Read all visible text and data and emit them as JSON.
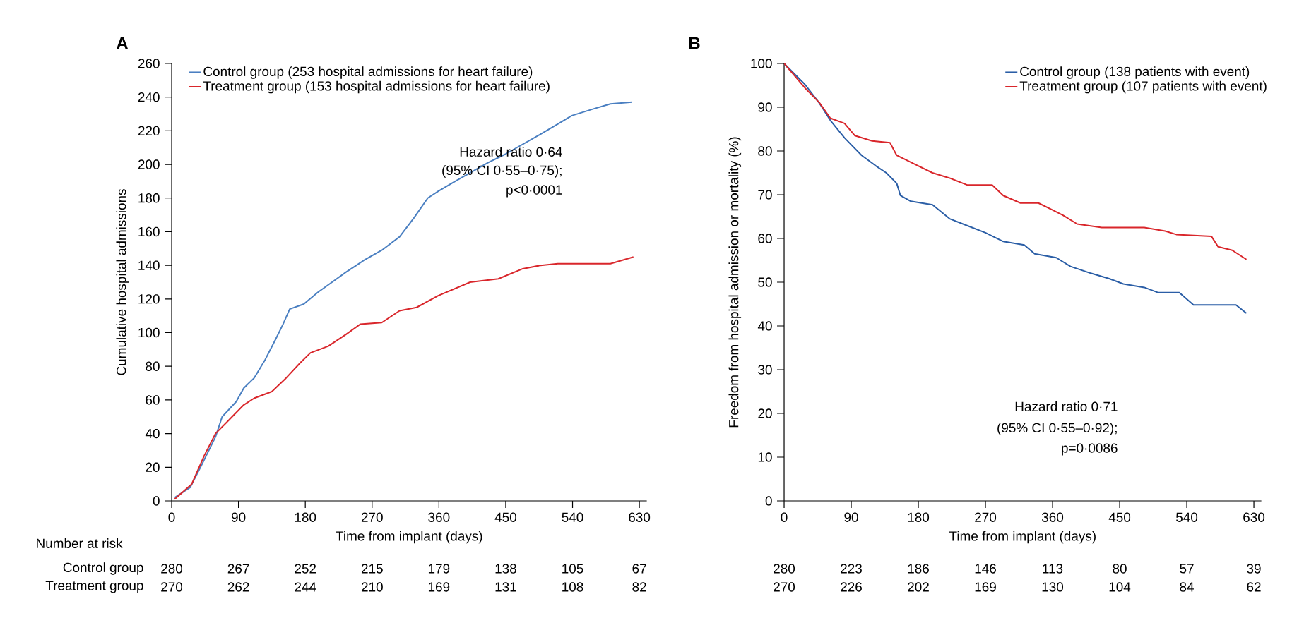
{
  "chart_data": [
    {
      "type": "line",
      "title": "A",
      "xlabel": "Time from implant (days)",
      "ylabel": "Cumulative hospital admissions",
      "xlim": [
        0,
        640
      ],
      "ylim": [
        0,
        260
      ],
      "xticks": [
        0,
        90,
        180,
        270,
        360,
        450,
        540,
        630
      ],
      "yticks": [
        0,
        20,
        40,
        60,
        80,
        100,
        120,
        140,
        160,
        180,
        200,
        220,
        240,
        260
      ],
      "legend": "top left",
      "series": [
        {
          "name": "Control group (253 hospital admissions for heart failure)",
          "color": "#4a7fc1",
          "x": [
            4,
            25,
            40,
            59,
            68,
            87,
            97,
            111,
            126,
            140,
            150,
            159,
            178,
            197,
            216,
            235,
            259,
            283,
            307,
            326,
            345,
            359,
            378,
            402,
            426,
            449,
            473,
            497,
            520,
            539,
            568,
            591,
            620
          ],
          "values": [
            2,
            8,
            21,
            38,
            50,
            59,
            67,
            73,
            84,
            96,
            105,
            114,
            117,
            124,
            130,
            136,
            143,
            149,
            157,
            168,
            180,
            184,
            189,
            195,
            201,
            206,
            212,
            218,
            224,
            229,
            233,
            236,
            237
          ]
        },
        {
          "name": "Treatment group (153 hospital admissions for heart failure)",
          "color": "#d9262b",
          "x": [
            4,
            27,
            44,
            59,
            77,
            97,
            111,
            135,
            154,
            173,
            187,
            211,
            235,
            254,
            283,
            307,
            330,
            359,
            402,
            440,
            473,
            497,
            520,
            591,
            622
          ],
          "values": [
            1,
            10,
            27,
            40,
            48,
            57,
            61,
            65,
            73,
            82,
            88,
            92,
            99,
            105,
            106,
            113,
            115,
            122,
            130,
            132,
            138,
            140,
            141,
            141,
            145
          ]
        }
      ],
      "annotations": [
        "Hazard ratio 0·64",
        "(95% CI 0·55–0·75);",
        "p<0·0001",
        "Number at risk",
        "Control group",
        "Treatment group",
        "280",
        "267",
        "252",
        "215",
        "179",
        "138",
        "105",
        "67",
        "270",
        "262",
        "244",
        "210",
        "169",
        "131",
        "108",
        "82"
      ]
    },
    {
      "type": "line",
      "title": "B",
      "xlabel": "Time from implant (days)",
      "ylabel": "Freedom from hospital admission or mortality (%)",
      "xlim": [
        0,
        640
      ],
      "ylim": [
        0,
        100
      ],
      "xticks": [
        0,
        90,
        180,
        270,
        360,
        450,
        540,
        630
      ],
      "yticks": [
        0,
        10,
        20,
        30,
        40,
        50,
        60,
        70,
        80,
        90,
        100
      ],
      "legend": "top right",
      "series": [
        {
          "name": "Control group (138 patients with event)",
          "color": "#2b5ea6",
          "x": [
            0,
            28,
            47,
            62,
            81,
            104,
            123,
            137,
            151,
            156,
            170,
            199,
            222,
            246,
            270,
            294,
            322,
            336,
            365,
            384,
            412,
            436,
            455,
            483,
            502,
            530,
            549,
            606,
            620
          ],
          "values": [
            100,
            95.2,
            91,
            87,
            83,
            79,
            76.6,
            75,
            72.6,
            69.8,
            68.5,
            67.7,
            64.5,
            62.9,
            61.3,
            59.3,
            58.5,
            56.5,
            55.6,
            53.6,
            52,
            50.8,
            49.6,
            48.8,
            47.6,
            47.6,
            44.8,
            44.8,
            42.9
          ]
        },
        {
          "name": "Treatment group (107 patients with event)",
          "color": "#d9262b",
          "x": [
            0,
            28,
            47,
            62,
            81,
            95,
            118,
            142,
            151,
            175,
            199,
            222,
            246,
            279,
            294,
            317,
            341,
            360,
            374,
            393,
            426,
            483,
            511,
            526,
            573,
            582,
            601,
            620
          ],
          "values": [
            100,
            94.4,
            91.1,
            87.5,
            86.3,
            83.5,
            82.3,
            81.9,
            79,
            77,
            75,
            73.8,
            72.2,
            72.2,
            69.8,
            68.1,
            68.1,
            66.5,
            65.3,
            63.3,
            62.5,
            62.5,
            61.7,
            60.9,
            60.5,
            58.1,
            57.3,
            55.2
          ]
        }
      ],
      "annotations": [
        "Hazard ratio 0·71",
        "(95% CI 0·55–0·92);",
        "p=0·0086",
        "280",
        "223",
        "186",
        "146",
        "113",
        "80",
        "57",
        "39",
        "270",
        "226",
        "202",
        "169",
        "130",
        "104",
        "84",
        "62"
      ]
    }
  ]
}
